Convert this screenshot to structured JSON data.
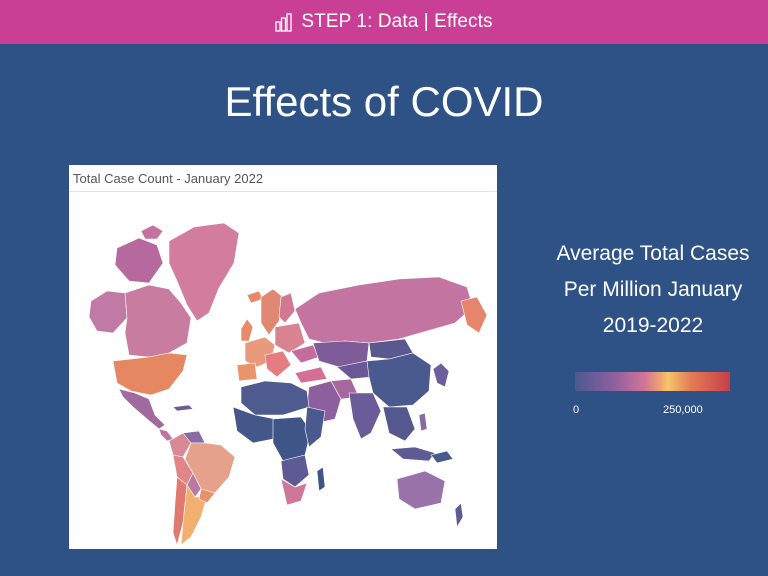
{
  "header": {
    "icon": "bar-chart-icon",
    "label": "STEP 1: Data | Effects",
    "color": "#c83f95"
  },
  "page": {
    "title": "Effects of COVID",
    "background": "#2e5286"
  },
  "map": {
    "title": "Total Case Count - January 2022"
  },
  "legend": {
    "title_line1": "Average Total Cases",
    "title_line2": "Per Million January",
    "title_line3": "2019-2022",
    "min_label": "0",
    "max_label": "250,000",
    "colors": [
      "#4a5a92",
      "#8e5f9e",
      "#d07696",
      "#f0a270",
      "#f4c56a",
      "#e37b55",
      "#c63f4a"
    ]
  }
}
